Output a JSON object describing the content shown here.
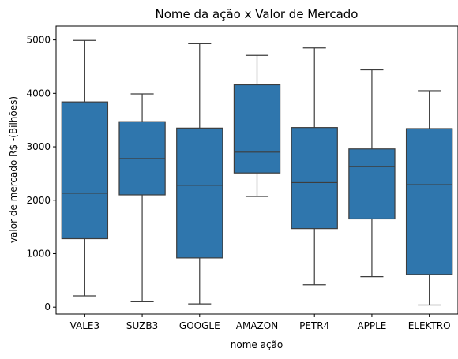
{
  "chart_data": {
    "type": "box",
    "title": "Nome da ação x Valor de Mercado",
    "xlabel": "nome ação",
    "ylabel": "valor de mercado R$ -(Bilhões)",
    "ylim": [
      -130,
      5260
    ],
    "yticks": [
      0,
      1000,
      2000,
      3000,
      4000,
      5000
    ],
    "grid": false,
    "box_color": "#2f76ad",
    "line_color": "#3d3d3d",
    "categories": [
      "VALE3",
      "SUZB3",
      "GOOGLE",
      "AMAZON",
      "PETR4",
      "APPLE",
      "ELEKTRO"
    ],
    "boxes": [
      {
        "category": "VALE3",
        "min": 210,
        "q1": 1280,
        "median": 2130,
        "q3": 3840,
        "max": 4990
      },
      {
        "category": "SUZB3",
        "min": 100,
        "q1": 2100,
        "median": 2780,
        "q3": 3470,
        "max": 3990
      },
      {
        "category": "GOOGLE",
        "min": 60,
        "q1": 920,
        "median": 2280,
        "q3": 3350,
        "max": 4930
      },
      {
        "category": "AMAZON",
        "min": 2070,
        "q1": 2510,
        "median": 2900,
        "q3": 4160,
        "max": 4710
      },
      {
        "category": "PETR4",
        "min": 420,
        "q1": 1470,
        "median": 2330,
        "q3": 3360,
        "max": 4850
      },
      {
        "category": "APPLE",
        "min": 570,
        "q1": 1650,
        "median": 2630,
        "q3": 2960,
        "max": 4440
      },
      {
        "category": "ELEKTRO",
        "min": 40,
        "q1": 610,
        "median": 2290,
        "q3": 3340,
        "max": 4050
      }
    ]
  }
}
